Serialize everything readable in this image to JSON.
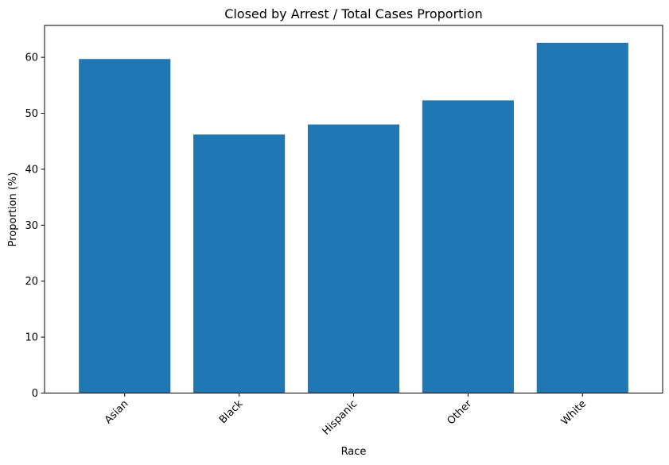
{
  "chart_data": {
    "type": "bar",
    "title": "Closed by Arrest / Total Cases Proportion",
    "xlabel": "Race",
    "ylabel": "Proportion (%)",
    "categories": [
      "Asian",
      "Black",
      "Hispanic",
      "Other",
      "White"
    ],
    "values": [
      59.7,
      46.2,
      48.0,
      52.3,
      62.6
    ],
    "ylim": [
      0,
      65.7
    ],
    "yticks": [
      0,
      10,
      20,
      30,
      40,
      50,
      60
    ],
    "grid": false,
    "legend": "none",
    "bar_color": "#1f77b4",
    "xtick_rotation_deg": 45
  }
}
